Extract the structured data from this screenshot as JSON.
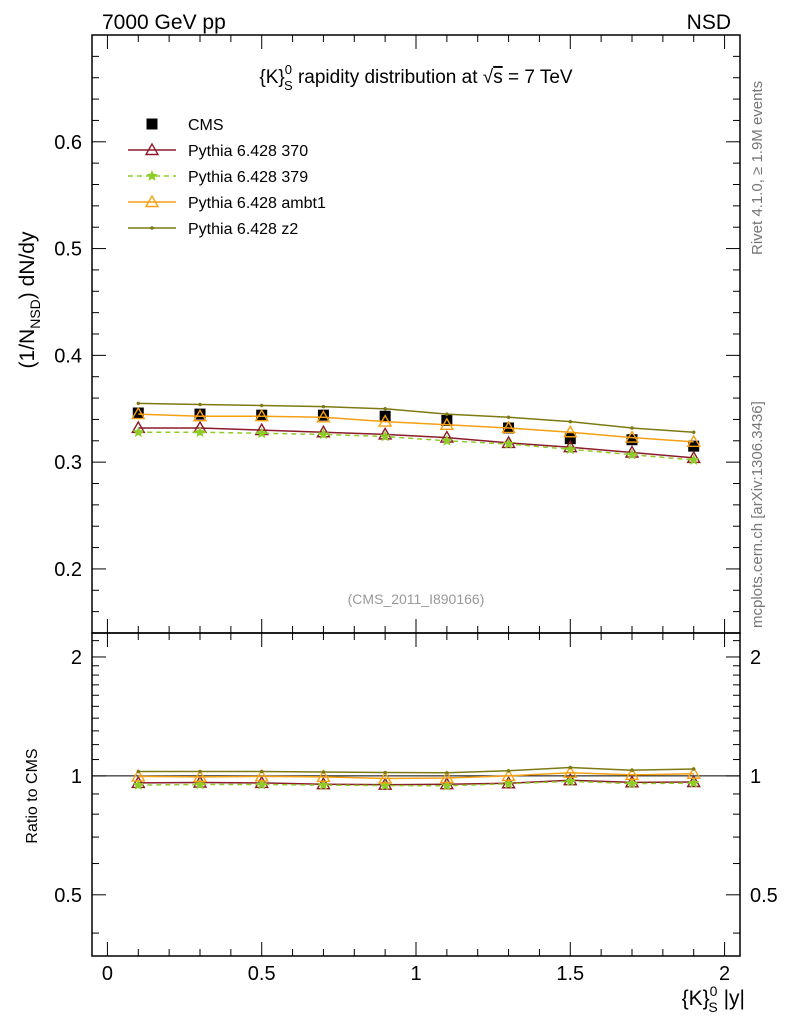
{
  "header": {
    "left": "7000 GeV pp",
    "right": "NSD"
  },
  "side_labels": {
    "rivet": "Rivet 4.1.0, ≥ 1.9M events",
    "mcplots": "mcplots.cern.ch [arXiv:1306.3436]"
  },
  "chart_data": {
    "type": "line",
    "title": "{K}⁰_S rapidity distribution at √s = 7 TeV",
    "title_parts": {
      "pre": "{K}",
      "sup": "0",
      "sub": "S",
      "post": " rapidity distribution at ",
      "root": "√",
      "s": "s",
      "tail": " = 7 TeV"
    },
    "analysis_id": "(CMS_2011_I890166)",
    "xlabel": "{K}⁰_S |y|",
    "xlabel_parts": {
      "pre": "{K}",
      "sup": "0",
      "sub": "S",
      "post": " |y|"
    },
    "ylabel": "(1/N_NSD) dN/dy",
    "ylabel_parts": {
      "pre": "(1/N",
      "sub": "NSD",
      "post": ") dN/dy"
    },
    "ratio_ylabel": "Ratio to CMS",
    "xlim": [
      -0.05,
      2.05
    ],
    "ylim": [
      0.14,
      0.7
    ],
    "ratio_ylim": [
      0.35,
      2.3
    ],
    "x_ticks": [
      0,
      0.5,
      1,
      1.5,
      2
    ],
    "x_tick_labels": [
      "0",
      "0.5",
      "1",
      "1.5",
      "2"
    ],
    "y_ticks": [
      0.2,
      0.3,
      0.4,
      0.5,
      0.6
    ],
    "y_tick_labels": [
      "0.2",
      "0.3",
      "0.4",
      "0.5",
      "0.6"
    ],
    "ratio_ticks": [
      0.5,
      1,
      2
    ],
    "ratio_tick_labels": [
      "0.5",
      "1",
      "2"
    ],
    "x": [
      0.1,
      0.3,
      0.5,
      0.7,
      0.9,
      1.1,
      1.3,
      1.5,
      1.7,
      1.9
    ],
    "data": {
      "name": "CMS",
      "values": [
        0.346,
        0.345,
        0.344,
        0.344,
        0.343,
        0.339,
        0.332,
        0.322,
        0.321,
        0.315
      ]
    },
    "series": [
      {
        "name": "Pythia 6.428 370",
        "color": "#8b1a2b",
        "dash": "",
        "marker": "triangle-open",
        "values": [
          0.332,
          0.332,
          0.33,
          0.328,
          0.326,
          0.323,
          0.318,
          0.314,
          0.309,
          0.304
        ],
        "ratio": [
          0.96,
          0.962,
          0.96,
          0.953,
          0.95,
          0.953,
          0.958,
          0.975,
          0.963,
          0.965
        ]
      },
      {
        "name": "Pythia 6.428 379",
        "color": "#8fcc2a",
        "dash": "5,4",
        "marker": "star",
        "values": [
          0.328,
          0.328,
          0.327,
          0.326,
          0.324,
          0.32,
          0.317,
          0.312,
          0.307,
          0.302
        ],
        "ratio": [
          0.948,
          0.951,
          0.951,
          0.948,
          0.945,
          0.944,
          0.955,
          0.969,
          0.956,
          0.959
        ]
      },
      {
        "name": "Pythia 6.428 ambt1",
        "color": "#f5a012",
        "dash": "",
        "marker": "triangle-open",
        "values": [
          0.345,
          0.343,
          0.343,
          0.342,
          0.338,
          0.335,
          0.332,
          0.328,
          0.323,
          0.319
        ],
        "ratio": [
          0.997,
          0.994,
          0.997,
          0.994,
          0.985,
          0.988,
          1.0,
          1.019,
          1.006,
          1.013
        ]
      },
      {
        "name": "Pythia 6.428 z2",
        "color": "#7d7a12",
        "dash": "",
        "marker": "dot",
        "values": [
          0.355,
          0.354,
          0.353,
          0.352,
          0.35,
          0.345,
          0.342,
          0.338,
          0.332,
          0.328
        ],
        "ratio": [
          1.026,
          1.026,
          1.026,
          1.023,
          1.02,
          1.018,
          1.03,
          1.05,
          1.034,
          1.041
        ]
      }
    ]
  }
}
